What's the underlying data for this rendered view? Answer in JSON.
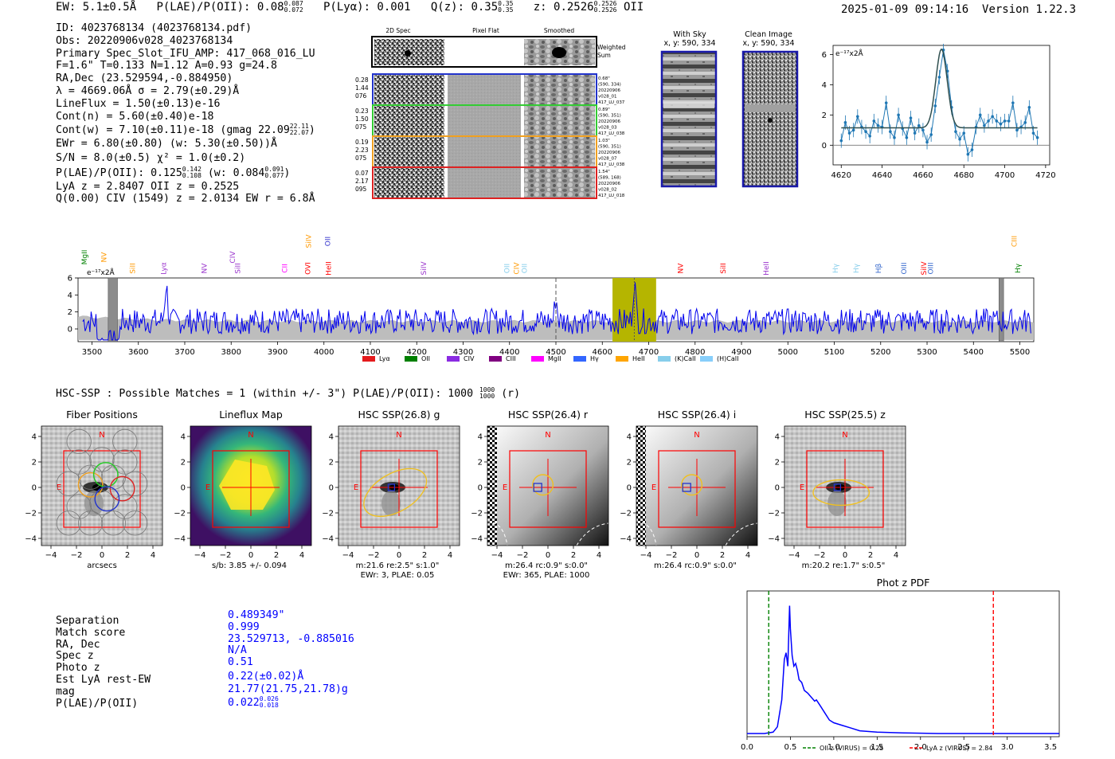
{
  "header": {
    "ew_text": "EW: 5.1±0.5Å",
    "plae_label": "P(LAE)/P(OII): 0.08",
    "plae_hi": "0.087",
    "plae_lo": "0.072",
    "plya_text": "P(Lyα): 0.001",
    "qz_label": "Q(z): 0.35",
    "qz_hi": "0.35",
    "qz_lo": "0.35",
    "z_label": "z: 0.2526",
    "z_hi": "0.2526",
    "z_lo": "0.2526",
    "z_line": "OII",
    "datetime": "2025-01-09 09:14:16",
    "version": "Version 1.22.3"
  },
  "info": {
    "id": "ID: 4023768134 (4023768134.pdf)",
    "obs": "Obs: 20220906v028_4023768134",
    "primary": "Primary Spec_Slot_IFU_AMP: 417_068_016_LU",
    "params": "F=1.6\"  T=0.133  N=1.12  A=0.93  g=24.8",
    "radec": "RA,Dec (23.529594,-0.884950)",
    "lambda": "λ = 4669.06Å  σ = 2.79(±0.29)Å",
    "lineflux": "LineFlux = 1.50(±0.13)e-16",
    "contn": "Cont(n) = 5.60(±0.40)e-18",
    "contw": "Cont(w) = 7.10(±0.11)e-18 (gmag 22.09",
    "contw_hi": "22.11",
    "contw_lo": "22.07",
    "contw_end": ")",
    "ewr": "EWr = 6.80(±0.80) (w: 5.30(±0.50))Å",
    "sn": "S/N = 8.0(±0.5)  χ² = 1.0(±0.2)",
    "plae": "P(LAE)/P(OII): 0.125",
    "plae_hi": "0.142",
    "plae_lo": "0.108",
    "plae_w": "(w: 0.084",
    "plae_w_hi": "0.091",
    "plae_w_lo": "0.077",
    "plae_w_end": ")",
    "lya": "LyA z = 2.8407  OII z = 0.2525",
    "q": "Q(0.00) CIV (1549) z = 2.0134  EW r = 6.8Å"
  },
  "cutouts": {
    "col_2d": "2D Spec",
    "col_flat": "Pixel Flat",
    "col_smooth": "Smoothed",
    "weighted": [
      "Weighted",
      "Sum"
    ],
    "rows": [
      {
        "left": [
          "0.28",
          "1.44",
          "076"
        ],
        "right": [
          "0.68\"",
          "(590, 334)",
          "20220906",
          "v028_01",
          "417_LU_037"
        ],
        "color": "#2233cc"
      },
      {
        "left": [
          "0.23",
          "1.50",
          "075"
        ],
        "right": [
          "0.89\"",
          "(590, 351)",
          "20220906",
          "v028_03",
          "417_LU_038"
        ],
        "color": "#33cc33"
      },
      {
        "left": [
          "0.19",
          "2.23",
          "075"
        ],
        "right": [
          "1.03\"",
          "(590, 351)",
          "20220906",
          "v028_07",
          "417_LU_038"
        ],
        "color": "#f0a020"
      },
      {
        "left": [
          "0.07",
          "2.17",
          "095"
        ],
        "right": [
          "1.54\"",
          "(589, 168)",
          "20220906",
          "v028_02",
          "417_LU_018"
        ],
        "color": "#dd2222"
      }
    ]
  },
  "sky": {
    "with_sky_title": "With Sky",
    "with_sky_coords": "x, y: 590, 334",
    "clean_title": "Clean Image",
    "clean_coords": "x, y: 590, 334"
  },
  "zoom_chart": {
    "type": "line",
    "scale_label": "e⁻¹⁷x2Å",
    "x": [
      4620,
      4622,
      4624,
      4626,
      4628,
      4630,
      4632,
      4634,
      4636,
      4638,
      4640,
      4642,
      4644,
      4646,
      4648,
      4650,
      4652,
      4654,
      4656,
      4658,
      4660,
      4662,
      4664,
      4666,
      4668,
      4670,
      4672,
      4674,
      4676,
      4678,
      4680,
      4682,
      4684,
      4686,
      4688,
      4690,
      4692,
      4694,
      4696,
      4698,
      4700,
      4702,
      4704,
      4706,
      4708,
      4710,
      4712,
      4714,
      4716
    ],
    "values": [
      0.3,
      1.5,
      0.8,
      1.0,
      1.9,
      1.2,
      0.9,
      0.6,
      1.6,
      1.3,
      1.2,
      2.8,
      0.9,
      0.5,
      2.0,
      1.1,
      0.5,
      1.8,
      0.8,
      1.3,
      1.0,
      0.2,
      0.7,
      2.6,
      4.5,
      6.3,
      4.9,
      2.5,
      0.9,
      0.4,
      0.8,
      -0.6,
      -0.3,
      1.2,
      2.0,
      1.3,
      1.6,
      1.9,
      1.6,
      1.4,
      1.6,
      1.6,
      2.8,
      1.0,
      1.2,
      1.5,
      2.5,
      0.8,
      0.5
    ],
    "fit_baseline": 1.15,
    "fit_peak": 5.2,
    "fit_center": 4669.06,
    "fit_sigma": 2.79,
    "xlim": [
      4616,
      4722
    ],
    "ylim": [
      -1.3,
      6.6
    ],
    "xticks": [
      4620,
      4640,
      4660,
      4680,
      4700,
      4720
    ],
    "yticks": [
      0,
      2,
      4,
      6
    ]
  },
  "full_spectrum": {
    "type": "line",
    "scale_label": "e⁻¹⁷x2Å",
    "xlim": [
      3470,
      5530
    ],
    "ylim": [
      -1.5,
      6
    ],
    "xticks": [
      3500,
      3600,
      3700,
      3800,
      3900,
      4000,
      4100,
      4200,
      4300,
      4400,
      4500,
      4600,
      4700,
      4800,
      4900,
      5000,
      5100,
      5200,
      5300,
      5400,
      5500
    ],
    "yticks": [
      0,
      2,
      4,
      6
    ],
    "highlight_range": [
      4622,
      4716
    ],
    "dashed_lines": [
      4500,
      4669
    ],
    "masked_regions": [
      [
        3535,
        3555
      ],
      [
        5455,
        5465
      ]
    ],
    "line_labels": [
      {
        "name": "MgII",
        "x": 3489,
        "color": "#008000",
        "row": 1
      },
      {
        "name": "NV",
        "x": 3531,
        "color": "#ff9900",
        "row": 1
      },
      {
        "name": "SiII",
        "x": 3593,
        "color": "#ff9900",
        "row": 2
      },
      {
        "name": "Lyα",
        "x": 3660,
        "color": "#9933cc",
        "row": 2
      },
      {
        "name": "NV",
        "x": 3747,
        "color": "#9933cc",
        "row": 2
      },
      {
        "name": "CIV",
        "x": 3808,
        "color": "#9933cc",
        "row": 1
      },
      {
        "name": "SiII",
        "x": 3819,
        "color": "#9933cc",
        "row": 2
      },
      {
        "name": "CII",
        "x": 3921,
        "color": "#ff00ff",
        "row": 2
      },
      {
        "name": "OVI",
        "x": 3970,
        "color": "#ff0000",
        "row": 2
      },
      {
        "name": "SiIV",
        "x": 3972,
        "color": "#ff9900",
        "row": 0
      },
      {
        "name": "OII",
        "x": 4013,
        "color": "#3333cc",
        "row": 0
      },
      {
        "name": "HeII",
        "x": 4015,
        "color": "#ff0000",
        "row": 2
      },
      {
        "name": "SiIV",
        "x": 4220,
        "color": "#9933cc",
        "row": 2
      },
      {
        "name": "OII",
        "x": 4400,
        "color": "#87ceeb",
        "row": 2
      },
      {
        "name": "CIV",
        "x": 4420,
        "color": "#ff9900",
        "row": 2
      },
      {
        "name": "OII",
        "x": 4437,
        "color": "#87ceeb",
        "row": 2
      },
      {
        "name": "NV",
        "x": 4774,
        "color": "#ff0000",
        "row": 2
      },
      {
        "name": "SiII",
        "x": 4866,
        "color": "#ff0000",
        "row": 2
      },
      {
        "name": "HeII",
        "x": 4958,
        "color": "#9933cc",
        "row": 2
      },
      {
        "name": "Hγ",
        "x": 5108,
        "color": "#87ceeb",
        "row": 2
      },
      {
        "name": "Hγ",
        "x": 5152,
        "color": "#87ceeb",
        "row": 2
      },
      {
        "name": "Hβ",
        "x": 5200,
        "color": "#3366cc",
        "row": 2
      },
      {
        "name": "OIII",
        "x": 5255,
        "color": "#3366cc",
        "row": 2
      },
      {
        "name": "SiIV",
        "x": 5298,
        "color": "#ff0000",
        "row": 2
      },
      {
        "name": "OIII",
        "x": 5313,
        "color": "#3366cc",
        "row": 2
      },
      {
        "name": "CIII",
        "x": 5493,
        "color": "#ff9900",
        "row": 0
      },
      {
        "name": "Hγ",
        "x": 5501,
        "color": "#008000",
        "row": 2
      }
    ],
    "legend": [
      {
        "name": "Lyα",
        "color": "#e41a1c"
      },
      {
        "name": "OII",
        "color": "#008000"
      },
      {
        "name": "CIV",
        "color": "#8a2be2"
      },
      {
        "name": "CIII",
        "color": "#800080"
      },
      {
        "name": "MgII",
        "color": "#ff00ff"
      },
      {
        "name": "Hγ",
        "color": "#3366ff"
      },
      {
        "name": "HeII",
        "color": "#ffa500"
      },
      {
        "name": "(K)CaII",
        "color": "#87ceeb"
      },
      {
        "name": "(H)CaII",
        "color": "#87cefa"
      }
    ]
  },
  "hsc": {
    "summary": "HSC-SSP : Possible Matches = 1 (within +/- 3\")  P(LAE)/P(OII): 1000",
    "summary_hi": "1000",
    "summary_lo": "1000",
    "summary_end": "(r)",
    "north": "N",
    "east": "E",
    "panels": [
      {
        "title": "Fiber Positions",
        "caption": [
          "arcsecs"
        ]
      },
      {
        "title": "Lineflux Map",
        "caption": [
          "s/b: 3.85 +/- 0.094"
        ]
      },
      {
        "title": "HSC SSP(26.8) g",
        "caption": [
          "m:21.6  re:2.5\"  s:1.0\"",
          "EWr: 3, PLAE: 0.05"
        ]
      },
      {
        "title": "HSC SSP(26.4) r",
        "caption": [
          "m:26.4 rc:0.9\"  s:0.0\"",
          "EWr: 365, PLAE: 1000"
        ]
      },
      {
        "title": "HSC SSP(26.4) i",
        "caption": [
          "m:26.4 rc:0.9\"  s:0.0\""
        ]
      },
      {
        "title": "HSC SSP(25.5) z",
        "caption": [
          "m:20.2  re:1.7\"  s:0.5\""
        ]
      }
    ],
    "ticks": [
      "−4",
      "−2",
      "0",
      "2",
      "4"
    ]
  },
  "match": {
    "labels": [
      "Separation",
      "Match score",
      "RA, Dec",
      "Spec z",
      "Photo z",
      "Est LyA rest-EW",
      "mag",
      "P(LAE)/P(OII)"
    ],
    "values": [
      "0.489349\"",
      "0.999",
      "23.529713, -0.885016",
      "N/A",
      "0.51",
      "0.22(±0.02)Å",
      "21.77(21.75,21.78)g",
      "0.022"
    ],
    "plae_hi": "0.026",
    "plae_lo": "0.018"
  },
  "photz_chart": {
    "type": "line",
    "title": "Phot z PDF",
    "xlim": [
      0,
      3.6
    ],
    "xticks": [
      0.0,
      0.5,
      1.0,
      1.5,
      2.0,
      2.5,
      3.0,
      3.5
    ],
    "x": [
      0.0,
      0.2,
      0.3,
      0.35,
      0.4,
      0.43,
      0.45,
      0.47,
      0.49,
      0.5,
      0.52,
      0.54,
      0.56,
      0.58,
      0.6,
      0.63,
      0.66,
      0.7,
      0.74,
      0.78,
      0.8,
      0.85,
      0.9,
      0.95,
      1.0,
      1.1,
      1.2,
      1.3,
      1.5,
      1.8,
      2.2,
      3.0,
      3.6
    ],
    "values": [
      0.0,
      0.0,
      0.01,
      0.05,
      0.25,
      0.55,
      0.6,
      0.5,
      0.95,
      0.78,
      0.58,
      0.5,
      0.52,
      0.47,
      0.4,
      0.38,
      0.32,
      0.3,
      0.27,
      0.24,
      0.25,
      0.2,
      0.15,
      0.1,
      0.08,
      0.06,
      0.04,
      0.02,
      0.01,
      0.005,
      0.0,
      0.0,
      0.0
    ],
    "oii_z": 0.25,
    "lya_z": 2.84,
    "legend_oii": "OII z (VIRUS) = 0.25",
    "legend_lya": "LyA z (VIRUS) = 2.84",
    "colors": {
      "oii": "#008000",
      "lya": "#ff0000",
      "pdf": "#0000ff"
    }
  }
}
